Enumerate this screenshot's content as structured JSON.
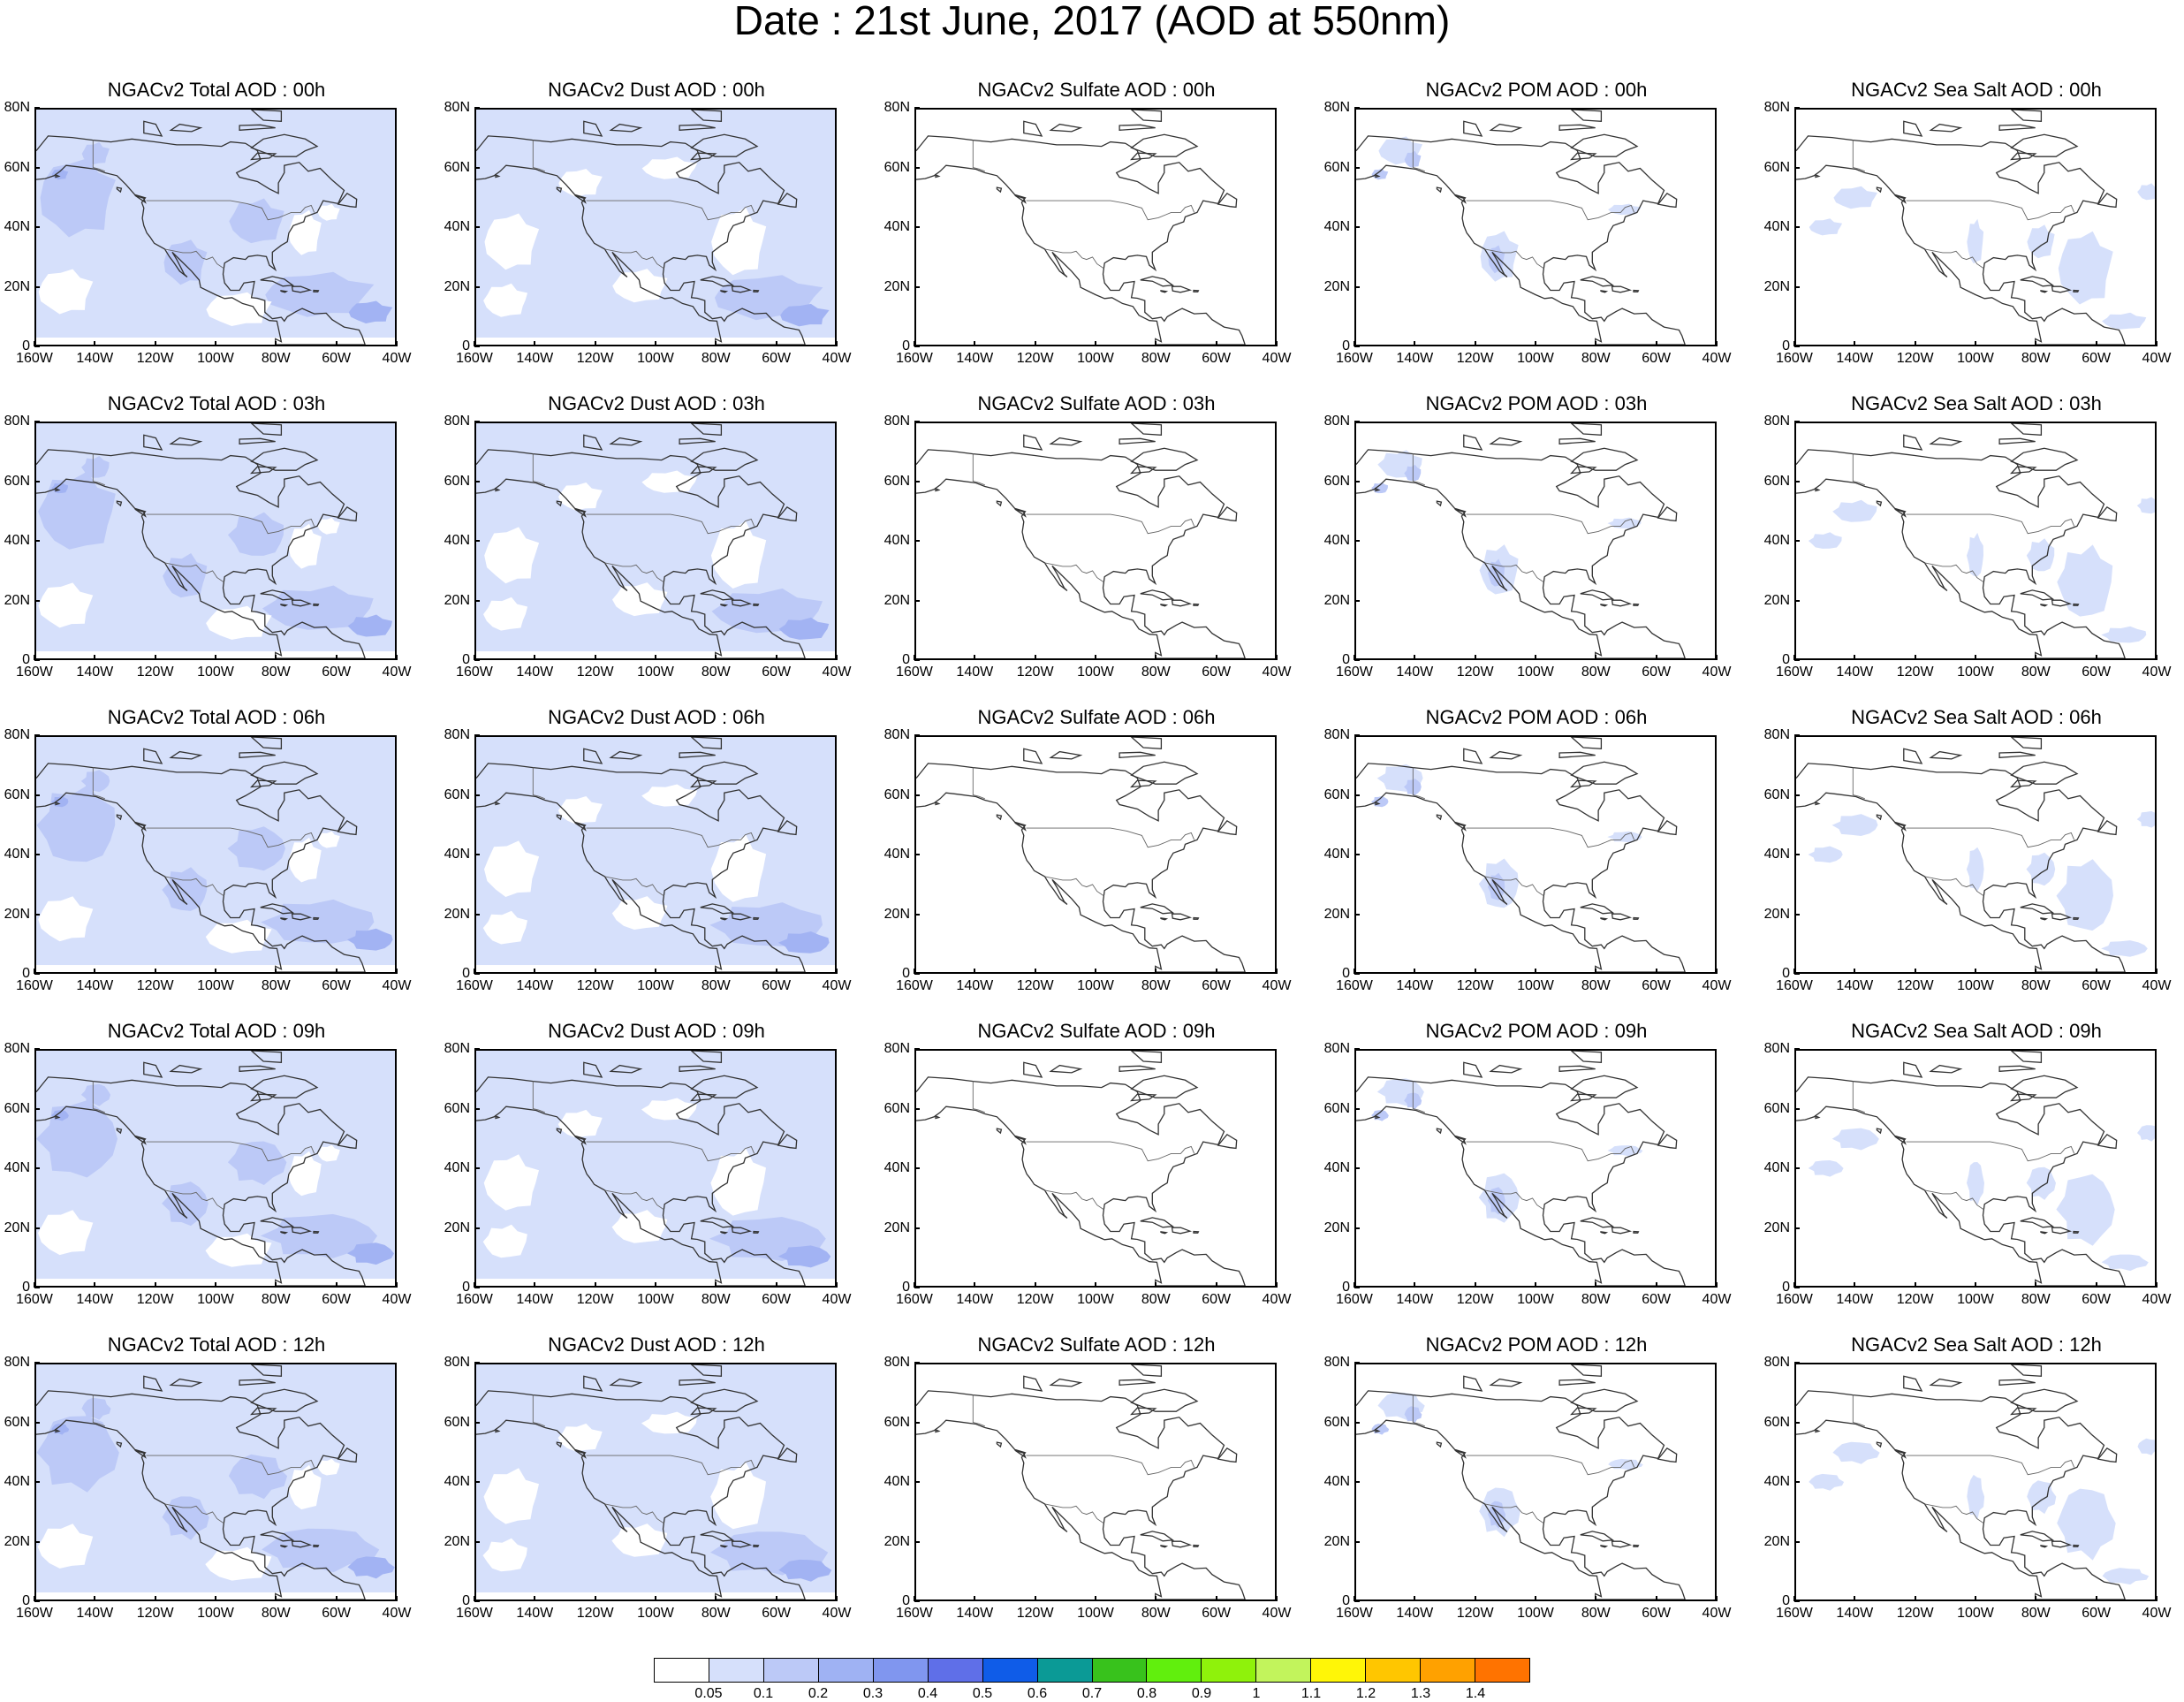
{
  "title": "Date : 21st June, 2017 (AOD at 550nm)",
  "axes": {
    "lat_ticks": [
      "80N",
      "60N",
      "40N",
      "20N",
      "0"
    ],
    "lon_ticks": [
      "160W",
      "140W",
      "120W",
      "100W",
      "80W",
      "60W",
      "40W"
    ],
    "lat_range": [
      0,
      80
    ],
    "lon_range": [
      -160,
      -40
    ]
  },
  "panel_titles": [
    [
      "NGACv2 Total AOD : 00h",
      "NGACv2 Dust AOD : 00h",
      "NGACv2 Sulfate AOD : 00h",
      "NGACv2 POM AOD : 00h",
      "NGACv2 Sea Salt AOD : 00h"
    ],
    [
      "NGACv2 Total AOD : 03h",
      "NGACv2 Dust AOD : 03h",
      "NGACv2 Sulfate AOD : 03h",
      "NGACv2 POM AOD : 03h",
      "NGACv2 Sea Salt AOD : 03h"
    ],
    [
      "NGACv2 Total AOD : 06h",
      "NGACv2 Dust AOD : 06h",
      "NGACv2 Sulfate AOD : 06h",
      "NGACv2 POM AOD : 06h",
      "NGACv2 Sea Salt AOD : 06h"
    ],
    [
      "NGACv2 Total AOD : 09h",
      "NGACv2 Dust AOD : 09h",
      "NGACv2 Sulfate AOD : 09h",
      "NGACv2 POM AOD : 09h",
      "NGACv2 Sea Salt  AOD : 09h"
    ],
    [
      "NGACv2 Total AOD  : 12h",
      "NGACv2 Dust AOD : 12h",
      "NGACv2 Sulfate AOD : 12h",
      "NGACv2 POM  AOD : 12h",
      "NGACv2 Sea Salt  AOD : 12h"
    ]
  ],
  "colorbar": {
    "labels": [
      "0.05",
      "0.1",
      "0.2",
      "0.3",
      "0.4",
      "0.5",
      "0.6",
      "0.7",
      "0.8",
      "0.9",
      "1",
      "1.1",
      "1.2",
      "1.3",
      "1.4"
    ],
    "colors": [
      "#ffffff",
      "#d6e0fb",
      "#bcc9f7",
      "#9fb2f3",
      "#8096ef",
      "#5f6fe8",
      "#0f5ce8",
      "#0b9a96",
      "#38c21c",
      "#61ef0d",
      "#8ff20b",
      "#c2f45c",
      "#fff607",
      "#ffc600",
      "#ffa100",
      "#ff7300",
      "#ff2a1a"
    ]
  },
  "fill_colors": {
    "level1": "#d6e0fb",
    "level2": "#bcc9f7",
    "level3": "#a2b3f3"
  }
}
